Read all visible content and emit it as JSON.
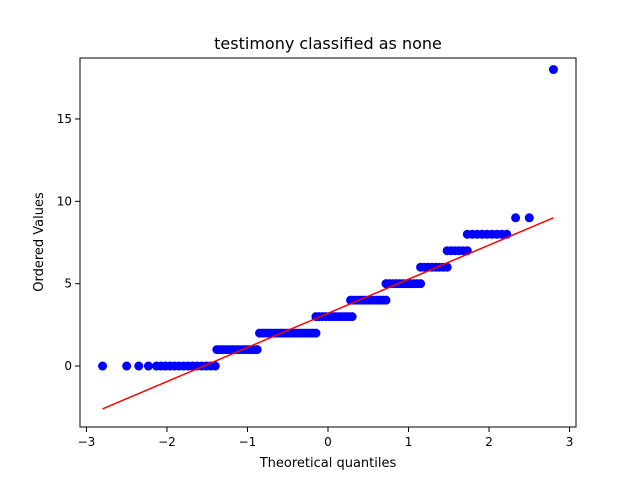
{
  "chart_data": {
    "type": "scatter",
    "title": "testimony classified as none",
    "xlabel": "Theoretical quantiles",
    "ylabel": "Ordered Values",
    "xlim": [
      -3.08,
      3.08
    ],
    "ylim": [
      -3.7,
      18.7
    ],
    "xticks": [
      -3,
      -2,
      -1,
      0,
      1,
      2,
      3
    ],
    "xtick_labels": [
      "−3",
      "−2",
      "−1",
      "0",
      "1",
      "2",
      "3"
    ],
    "yticks": [
      0,
      5,
      10,
      15
    ],
    "ytick_labels": [
      "0",
      "5",
      "10",
      "15"
    ],
    "grid": false,
    "legend": "none",
    "colors": {
      "points": "#0000ff",
      "fit_line": "#ff0000",
      "axes": "#000000"
    },
    "series": [
      {
        "kind": "points",
        "segments": [
          {
            "y": 0,
            "x_start": -2.8,
            "x_end": -2.8,
            "count": 1
          },
          {
            "y": 0,
            "x_start": -2.5,
            "x_end": -2.5,
            "count": 1
          },
          {
            "y": 0,
            "x_start": -2.35,
            "x_end": -2.35,
            "count": 1
          },
          {
            "y": 0,
            "x_start": -2.23,
            "x_end": -2.23,
            "count": 1
          },
          {
            "y": 0,
            "x_start": -2.13,
            "x_end": -1.4,
            "count": 14
          },
          {
            "y": 1,
            "x_start": -1.38,
            "x_end": -0.88,
            "count": 14
          },
          {
            "y": 2,
            "x_start": -0.85,
            "x_end": -0.15,
            "count": 20
          },
          {
            "y": 3,
            "x_start": -0.15,
            "x_end": 0.3,
            "count": 12
          },
          {
            "y": 4,
            "x_start": 0.28,
            "x_end": 0.72,
            "count": 12
          },
          {
            "y": 5,
            "x_start": 0.72,
            "x_end": 1.15,
            "count": 11
          },
          {
            "y": 6,
            "x_start": 1.15,
            "x_end": 1.48,
            "count": 8
          },
          {
            "y": 7,
            "x_start": 1.48,
            "x_end": 1.73,
            "count": 6
          },
          {
            "y": 8,
            "x_start": 1.73,
            "x_end": 2.22,
            "count": 9
          },
          {
            "y": 9,
            "x_start": 2.33,
            "x_end": 2.33,
            "count": 1
          },
          {
            "y": 9,
            "x_start": 2.5,
            "x_end": 2.5,
            "count": 1
          },
          {
            "y": 18,
            "x_start": 2.8,
            "x_end": 2.8,
            "count": 1
          }
        ]
      },
      {
        "kind": "fit-line",
        "x": [
          -2.8,
          2.8
        ],
        "y": [
          -2.6,
          9.0
        ]
      }
    ]
  }
}
